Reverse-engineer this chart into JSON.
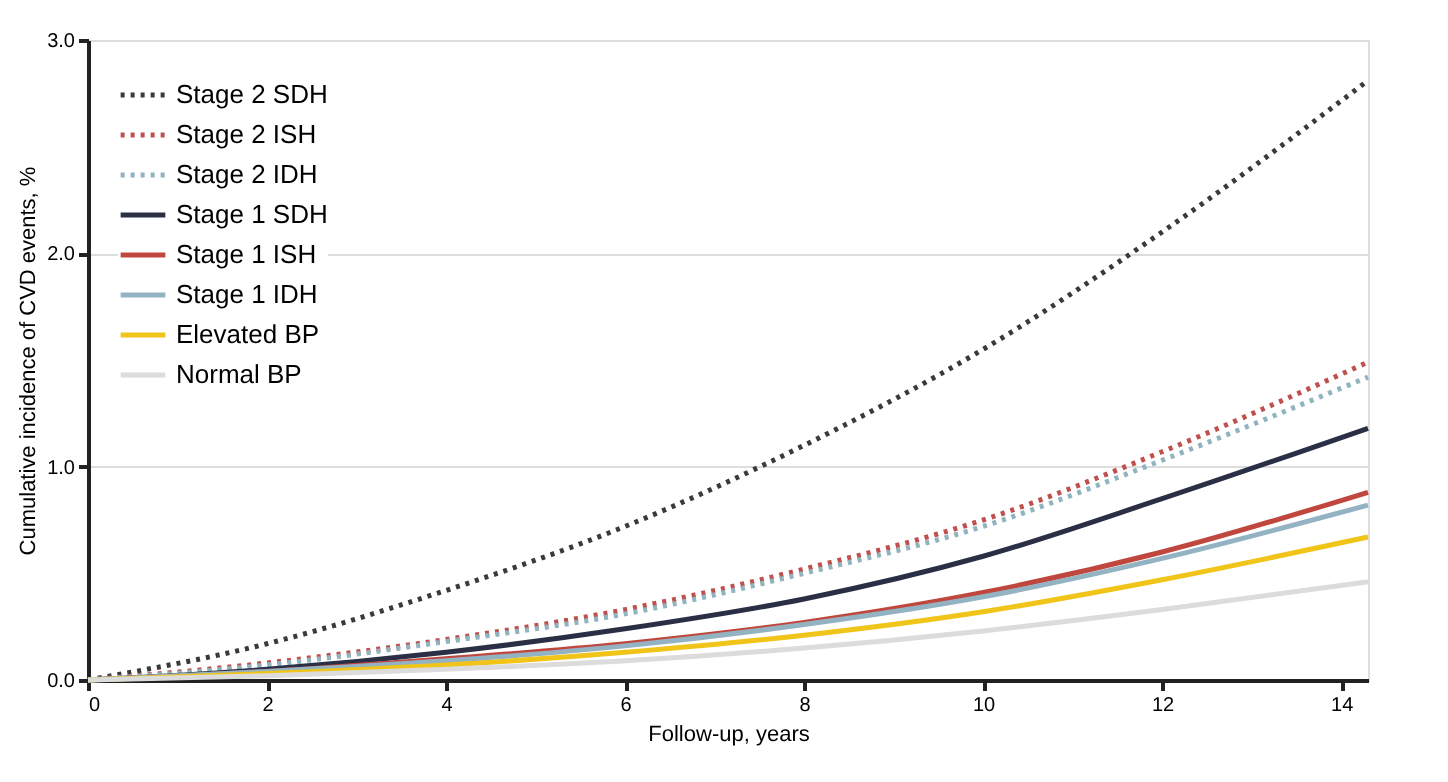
{
  "chart_data": {
    "type": "line",
    "xlabel": "Follow-up, years",
    "ylabel": "Cumulative incidence of CVD events, %",
    "x": [
      0,
      2,
      4,
      6,
      8,
      10,
      12,
      14.3
    ],
    "series": [
      {
        "name": "Stage 2 SDH",
        "color": "#3a3a3a",
        "line_style": "dotted",
        "values": [
          0,
          0.17,
          0.42,
          0.72,
          1.1,
          1.55,
          2.1,
          2.81
        ]
      },
      {
        "name": "Stage 2 ISH",
        "color": "#c0504d",
        "line_style": "dotted",
        "values": [
          0,
          0.08,
          0.19,
          0.33,
          0.52,
          0.75,
          1.07,
          1.49
        ]
      },
      {
        "name": "Stage 2 IDH",
        "color": "#8fb3bf",
        "line_style": "dotted",
        "values": [
          0,
          0.07,
          0.18,
          0.31,
          0.5,
          0.72,
          1.03,
          1.42
        ]
      },
      {
        "name": "Stage 1 SDH",
        "color": "#2b2f45",
        "line_style": "solid",
        "values": [
          0,
          0.05,
          0.13,
          0.24,
          0.38,
          0.58,
          0.85,
          1.18
        ]
      },
      {
        "name": "Stage 1 ISH",
        "color": "#c0473e",
        "line_style": "solid",
        "values": [
          0,
          0.04,
          0.1,
          0.17,
          0.27,
          0.41,
          0.6,
          0.88
        ]
      },
      {
        "name": "Stage 1 IDH",
        "color": "#93b3c2",
        "line_style": "solid",
        "values": [
          0,
          0.04,
          0.09,
          0.16,
          0.26,
          0.39,
          0.57,
          0.82
        ]
      },
      {
        "name": "Elevated BP",
        "color": "#f0c419",
        "line_style": "solid",
        "values": [
          0,
          0.03,
          0.07,
          0.13,
          0.21,
          0.32,
          0.47,
          0.67
        ]
      },
      {
        "name": "Normal BP",
        "color": "#dcdcdc",
        "line_style": "solid",
        "values": [
          0,
          0.02,
          0.05,
          0.09,
          0.15,
          0.23,
          0.33,
          0.46
        ]
      }
    ],
    "xlim": [
      0,
      14.3
    ],
    "xticks": [
      0,
      2,
      4,
      6,
      8,
      10,
      12,
      14
    ],
    "ylim": [
      0,
      3.0
    ],
    "yticks": [
      {
        "value": 0,
        "label": "0.0"
      },
      {
        "value": 1,
        "label": "1.0"
      },
      {
        "value": 2,
        "label": "2.0"
      },
      {
        "value": 3,
        "label": "3.0"
      }
    ],
    "grid": "y",
    "legend": "top left",
    "marker": "none"
  }
}
